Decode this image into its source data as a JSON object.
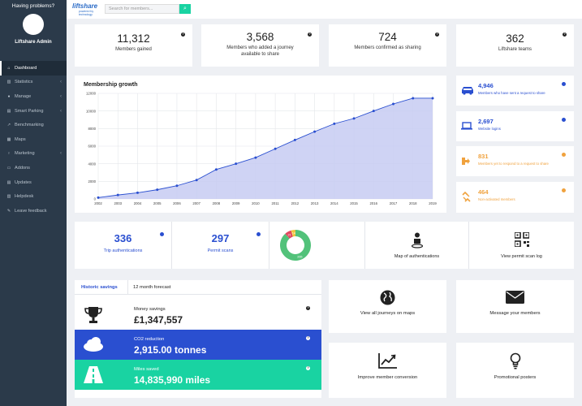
{
  "sidebar": {
    "help": "Having problems?",
    "admin": "Liftshare Admin",
    "items": [
      {
        "label": "Dashboard",
        "icon": "home-icon",
        "chev": ""
      },
      {
        "label": "Statistics",
        "icon": "stats-icon",
        "chev": "‹"
      },
      {
        "label": "Manage",
        "icon": "users-icon",
        "chev": "‹"
      },
      {
        "label": "Smart Parking",
        "icon": "parking-icon",
        "chev": "‹"
      },
      {
        "label": "Benchmarking",
        "icon": "benchmark-icon",
        "chev": ""
      },
      {
        "label": "Maps",
        "icon": "map-icon",
        "chev": ""
      },
      {
        "label": "Marketing",
        "icon": "marketing-icon",
        "chev": "‹"
      },
      {
        "label": "Addons",
        "icon": "addons-icon",
        "chev": ""
      },
      {
        "label": "Updates",
        "icon": "updates-icon",
        "chev": ""
      },
      {
        "label": "Helpdesk",
        "icon": "helpdesk-icon",
        "chev": ""
      },
      {
        "label": "Leave feedback",
        "icon": "feedback-icon",
        "chev": ""
      }
    ]
  },
  "header": {
    "logo_main": "liftshare",
    "logo_sub": "powered by technology",
    "search_placeholder": "Search for members...",
    "search_button": "⌕"
  },
  "stats": [
    {
      "value": "11,312",
      "label": "Members gained"
    },
    {
      "value": "3,568",
      "label": "Members who added a journey available to share"
    },
    {
      "value": "724",
      "label": "Members confirmed as sharing"
    },
    {
      "value": "362",
      "label": "Liftshare teams"
    }
  ],
  "right_cards": [
    {
      "value": "4,946",
      "label": "Members who have sent a request to share",
      "color": "#2a4fd0",
      "icon": "car-icon"
    },
    {
      "value": "2,697",
      "label": "Website logins",
      "color": "#2a4fd0",
      "icon": "laptop-icon"
    },
    {
      "value": "831",
      "label": "Members yet to respond to a request to share",
      "color": "#f0a23e",
      "icon": "signout-icon"
    },
    {
      "value": "464",
      "label": "Non-activated members",
      "color": "#f0a23e",
      "icon": "unlink-icon"
    }
  ],
  "auth": {
    "trip_value": "336",
    "trip_label": "Trip authentications",
    "permit_value": "297",
    "permit_label": "Permit scans",
    "donut_labels": [
      "21",
      "14",
      "265"
    ],
    "map_label": "Map of authentications",
    "scan_label": "View permit scan log"
  },
  "savings": {
    "tab_active": "Historic savings",
    "tab_other": "12 month forecast",
    "money_label": "Money savings",
    "money_value": "£1,347,557",
    "co2_label": "CO2 reduction",
    "co2_value": "2,915.00 tonnes",
    "miles_label": "Miles saved",
    "miles_value": "14,835,990 miles"
  },
  "tiles": [
    {
      "label": "View all journeys on maps",
      "icon": "globe-icon"
    },
    {
      "label": "Message your members",
      "icon": "envelope-icon"
    },
    {
      "label": "Improve member conversion",
      "icon": "chart-line-icon"
    },
    {
      "label": "Promotional posters",
      "icon": "lightbulb-icon"
    }
  ],
  "help_mark": "?",
  "chart_data": {
    "type": "area",
    "title": "Membership growth",
    "x": [
      "2002",
      "2003",
      "2004",
      "2005",
      "2006",
      "2007",
      "2008",
      "2009",
      "2010",
      "2011",
      "2012",
      "2013",
      "2014",
      "2015",
      "2016",
      "2017",
      "2018",
      "2019"
    ],
    "series": [
      {
        "values": [
          150,
          450,
          700,
          1050,
          1500,
          2150,
          3350,
          4000,
          4700,
          5700,
          6700,
          7650,
          8550,
          9150,
          10000,
          10800,
          11450,
          11450
        ]
      }
    ],
    "ylim": [
      0,
      12000
    ],
    "yticks": [
      0,
      2000,
      4000,
      6000,
      8000,
      10000,
      12000
    ],
    "color": "#2a4fd0",
    "fill": "#c7cbf2",
    "grid": true
  },
  "donut_data": {
    "type": "pie",
    "values": [
      21,
      14,
      265
    ],
    "colors": [
      "#e0475f",
      "#f0c43e",
      "#52c27a"
    ]
  }
}
